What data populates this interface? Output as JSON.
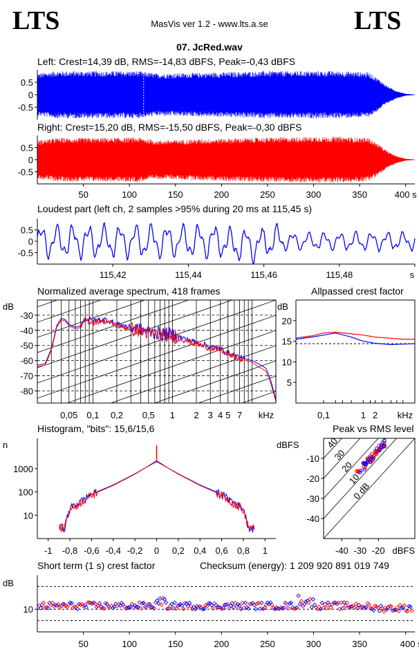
{
  "header": {
    "logo_left": "LTS",
    "logo_right": "LTS",
    "app_title": "MasVis ver 1.2 - www.lts.a.se",
    "file_name": "07. JcRed.wav"
  },
  "panels": {
    "left_title": "Left: Crest=14,39 dB, RMS=-14,83 dBFS, Peak=-0,43 dBFS",
    "right_title": "Right: Crest=15,20 dB, RMS=-15,50 dBFS, Peak=-0,30 dBFS",
    "loudest_title": "Loudest part (left  ch, 2 samples >95% during 20 ms at 115,45 s)",
    "spectrum_title": "Normalized average spectrum, 418 frames",
    "crest_title": "Allpassed crest factor",
    "histogram_title": "Histogram, \"bits\": 15,6/15,6",
    "peakrms_title": "Peak vs RMS level",
    "shortterm_title": "Short term (1 s) crest factor",
    "checksum": "Checksum (energy):  1 209 920 891 019 749"
  },
  "colors": {
    "left": "#0000ff",
    "right": "#ff0000",
    "axis": "#000000"
  },
  "chart_data": [
    {
      "id": "left",
      "type": "area",
      "title": "Left: Crest=14,39 dB, RMS=-14,83 dBFS, Peak=-0,43 dBFS",
      "yticks": [
        "0.5",
        "0",
        "-0.5"
      ],
      "ylim": [
        -1,
        1
      ],
      "xlim": [
        0,
        410
      ],
      "envelope_t": [
        0,
        20,
        60,
        110,
        130,
        200,
        250,
        300,
        330,
        360,
        370,
        380,
        390,
        400,
        410
      ],
      "envelope_amp": [
        0.85,
        0.95,
        0.95,
        0.95,
        0.85,
        0.9,
        0.95,
        0.95,
        0.95,
        0.9,
        0.65,
        0.35,
        0.15,
        0.04,
        0.01
      ],
      "marker_t": 115.45
    },
    {
      "id": "right",
      "type": "area",
      "title": "Right: Crest=15,20 dB, RMS=-15,50 dBFS, Peak=-0,30 dBFS",
      "yticks": [
        "0.5",
        "0",
        "-0.5"
      ],
      "ylim": [
        -1,
        1
      ],
      "xticks": [
        "50",
        "100",
        "150",
        "200",
        "250",
        "300",
        "350",
        "400 s"
      ],
      "xtick_values": [
        50,
        100,
        150,
        200,
        250,
        300,
        350,
        400
      ],
      "xlim": [
        0,
        410
      ],
      "envelope_t": [
        0,
        20,
        60,
        110,
        130,
        200,
        250,
        300,
        330,
        360,
        370,
        380,
        390,
        400,
        410
      ],
      "envelope_amp": [
        0.8,
        0.9,
        0.9,
        0.92,
        0.8,
        0.88,
        0.92,
        0.95,
        0.95,
        0.9,
        0.65,
        0.35,
        0.15,
        0.04,
        0.01
      ]
    },
    {
      "id": "loudest",
      "type": "line",
      "title": "Loudest part (left  ch, 2 samples >95% during 20 ms at 115,45 s)",
      "yticks": [
        "0.5",
        "0",
        "-0.5"
      ],
      "ylim": [
        -1,
        1
      ],
      "xticks": [
        "115,42",
        "115,44",
        "115,46",
        "115,48",
        "s"
      ],
      "xtick_values": [
        115.42,
        115.44,
        115.46,
        115.48,
        115.5
      ],
      "xlim": [
        115.4,
        115.5
      ]
    },
    {
      "id": "spectrum",
      "type": "line",
      "title": "Normalized average spectrum, 418 frames",
      "ylabel": "dB",
      "yticks": [
        "-30",
        "-40",
        "-50",
        "-60",
        "-70",
        "-80"
      ],
      "ytick_values": [
        -30,
        -40,
        -50,
        -60,
        -70,
        -80
      ],
      "ylim": [
        -88,
        -20
      ],
      "xticks": [
        "0,05",
        "0,1",
        "0,2",
        "0,5",
        "1",
        "2",
        "3",
        "4",
        "5",
        "7",
        "kHz"
      ],
      "xtick_values": [
        0.05,
        0.1,
        0.2,
        0.5,
        1,
        2,
        3,
        4,
        5,
        7
      ],
      "xlim": [
        0.02,
        20
      ],
      "x": [
        0.02,
        0.025,
        0.03,
        0.035,
        0.04,
        0.045,
        0.05,
        0.06,
        0.07,
        0.08,
        0.1,
        0.12,
        0.15,
        0.2,
        0.3,
        0.5,
        0.7,
        1,
        1.5,
        2,
        3,
        4,
        5,
        7,
        10,
        12,
        15,
        17,
        20
      ],
      "series": [
        {
          "name": "",
          "values": [
            -63,
            -62,
            -52,
            -37,
            -32,
            -33,
            -36,
            -38,
            -37,
            -32,
            -34,
            -33,
            -33,
            -36,
            -38,
            -41,
            -42,
            -43,
            -46,
            -48,
            -51,
            -52,
            -55,
            -58,
            -60,
            -62,
            -65,
            -72,
            -86
          ]
        },
        {
          "name": "",
          "values": [
            -64,
            -63,
            -53,
            -38,
            -33,
            -34,
            -37,
            -39,
            -38,
            -33,
            -35,
            -34,
            -34,
            -37,
            -39,
            -42,
            -43,
            -44,
            -47,
            -49,
            -52,
            -53,
            -56,
            -59,
            -61,
            -64,
            -67,
            -74,
            -87
          ]
        }
      ]
    },
    {
      "id": "crest",
      "type": "line",
      "title": "Allpassed crest factor",
      "ylabel": "dB",
      "yticks": [
        "20",
        "15",
        "10",
        "5"
      ],
      "ytick_values": [
        20,
        15,
        10,
        5
      ],
      "ylim": [
        0,
        25
      ],
      "xticks": [
        "0,1",
        "1",
        "2",
        "kHz"
      ],
      "xtick_values": [
        0.1,
        1,
        2
      ],
      "xlim": [
        0.02,
        20
      ],
      "x": [
        0.02,
        0.05,
        0.1,
        0.2,
        0.5,
        1,
        2,
        5,
        10,
        20
      ],
      "series": [
        {
          "name": "",
          "values": [
            15.5,
            16,
            16.5,
            17,
            16,
            15,
            14.5,
            14.2,
            14.3,
            14.4
          ]
        },
        {
          "name": "",
          "values": [
            15.8,
            16.3,
            17,
            17.2,
            16.8,
            16.5,
            16,
            15.7,
            15.5,
            15.5
          ]
        }
      ],
      "reference": 14.4
    },
    {
      "id": "histogram",
      "type": "line",
      "title": "Histogram, \"bits\": 15,6/15,6",
      "ylabel": "n",
      "yticks": [
        "1000",
        "100",
        "10"
      ],
      "ytick_values": [
        1000,
        100,
        10
      ],
      "ylim": [
        1,
        20000
      ],
      "xticks": [
        "-1",
        "-0,8",
        "-0,6",
        "-0,4",
        "-0,2",
        "0",
        "0,2",
        "0,4",
        "0,6",
        "0,8",
        "1"
      ],
      "xtick_values": [
        -1,
        -0.8,
        -0.6,
        -0.4,
        -0.2,
        0,
        0.2,
        0.4,
        0.6,
        0.8,
        1
      ],
      "xlim": [
        -1.1,
        1.1
      ],
      "x": [
        -0.85,
        -0.8,
        -0.6,
        -0.4,
        -0.2,
        -0.1,
        0,
        0.1,
        0.2,
        0.4,
        0.6,
        0.8,
        0.85
      ],
      "series": [
        {
          "name": "",
          "values": [
            3,
            20,
            80,
            200,
            600,
            1100,
            2000,
            1100,
            600,
            200,
            80,
            20,
            3
          ]
        },
        {
          "name": "",
          "values": [
            3,
            18,
            75,
            190,
            580,
            1100,
            2200,
            1100,
            580,
            190,
            75,
            18,
            3
          ]
        }
      ],
      "peak": 10000
    },
    {
      "id": "peakrms",
      "type": "scatter",
      "title": "Peak vs RMS level",
      "ylabel": "dBFS",
      "xlabel": "dBFS",
      "yticks": [
        "-10",
        "-20",
        "-30",
        "-40"
      ],
      "ytick_values": [
        -10,
        -20,
        -30,
        -40
      ],
      "ylim": [
        -50,
        0
      ],
      "xticks": [
        "-40",
        "-30",
        "-20"
      ],
      "xtick_values": [
        -40,
        -30,
        -20
      ],
      "xlim": [
        -50,
        0
      ],
      "diagonal_labels": [
        "40",
        "30",
        "20",
        "10",
        "0 dB"
      ],
      "diagonal_values": [
        40,
        30,
        20,
        10,
        0
      ]
    },
    {
      "id": "shortterm",
      "type": "scatter",
      "title": "Short term (1 s) crest factor",
      "ylabel": "dB",
      "yticks": [
        "10"
      ],
      "ytick_values": [
        10
      ],
      "ylim": [
        0,
        25
      ],
      "reference_lines": [
        5,
        10,
        20
      ],
      "xticks": [
        "50",
        "100",
        "150",
        "200",
        "250",
        "300",
        "350",
        "400 s"
      ],
      "xtick_values": [
        50,
        100,
        150,
        200,
        250,
        300,
        350,
        400
      ],
      "xlim": [
        0,
        410
      ]
    }
  ]
}
